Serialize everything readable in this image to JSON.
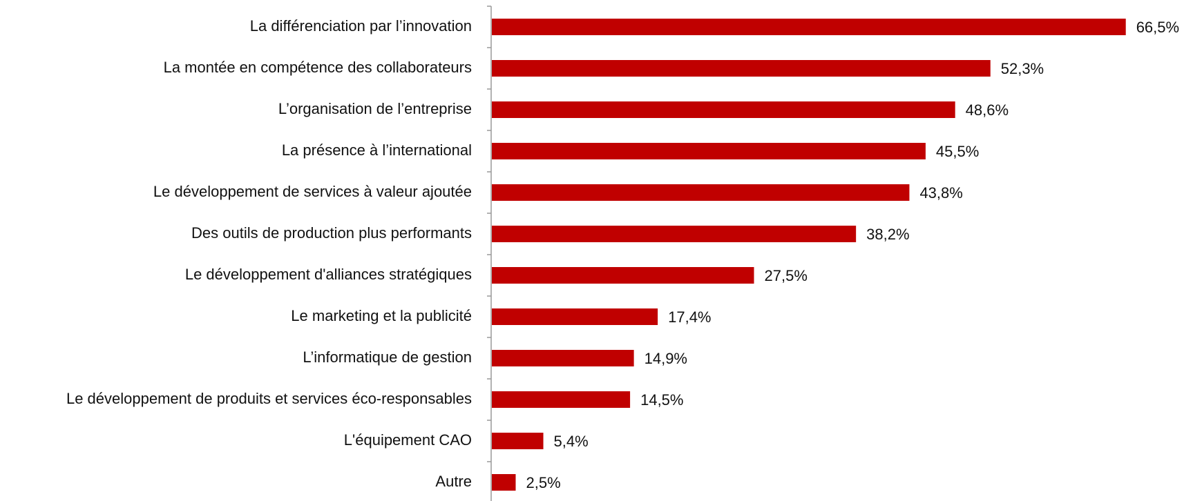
{
  "chart_data": {
    "type": "bar",
    "orientation": "horizontal",
    "categories": [
      "La différenciation par l’innovation",
      "La montée en compétence des collaborateurs",
      "L’organisation de l’entreprise",
      "La présence à l’international",
      "Le développement de services à valeur ajoutée",
      "Des outils de production plus performants",
      "Le développement d'alliances stratégiques",
      "Le marketing et la publicité",
      "L’informatique de gestion",
      "Le développement de produits et services éco-responsables",
      "L'équipement CAO",
      "Autre"
    ],
    "values": [
      66.5,
      52.3,
      48.6,
      45.5,
      43.8,
      38.2,
      27.5,
      17.4,
      14.9,
      14.5,
      5.4,
      2.5
    ],
    "value_labels": [
      "66,5%",
      "52,3%",
      "48,6%",
      "45,5%",
      "43,8%",
      "38,2%",
      "27,5%",
      "17,4%",
      "14,9%",
      "14,5%",
      "5,4%",
      "2,5%"
    ],
    "color": "#c00000"
  }
}
